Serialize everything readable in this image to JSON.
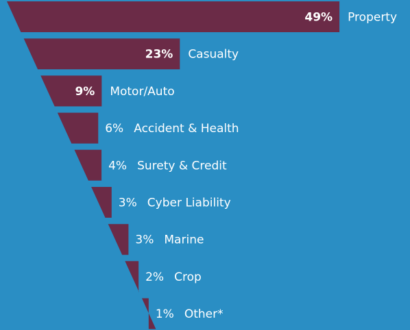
{
  "chart_data": {
    "type": "funnel",
    "categories": [
      "Property",
      "Casualty",
      "Motor/Auto",
      "Accident & Health",
      "Surety & Credit",
      "Cyber Liability",
      "Marine",
      "Crop",
      "Other*"
    ],
    "values": [
      49,
      23,
      9,
      6,
      4,
      3,
      3,
      2,
      1
    ],
    "value_labels": [
      "49%",
      "23%",
      "9%",
      "6%",
      "4%",
      "3%",
      "3%",
      "2%",
      "1%"
    ],
    "color": "#6b2b47"
  }
}
